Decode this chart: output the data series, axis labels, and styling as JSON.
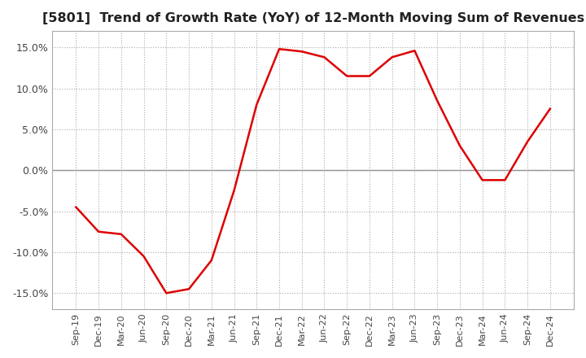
{
  "title": "[5801]  Trend of Growth Rate (YoY) of 12-Month Moving Sum of Revenues",
  "title_fontsize": 11.5,
  "line_color": "#dd0000",
  "background_color": "#ffffff",
  "grid_color": "#aaaaaa",
  "zero_line_color": "#888888",
  "ylim": [
    -17,
    17
  ],
  "yticks": [
    -15,
    -10,
    -5,
    0,
    5,
    10,
    15
  ],
  "ytick_labels": [
    "-15.0%",
    "-10.0%",
    "-5.0%",
    "0.0%",
    "5.0%",
    "10.0%",
    "15.0%"
  ],
  "x_labels": [
    "Sep-19",
    "Dec-19",
    "Mar-20",
    "Jun-20",
    "Sep-20",
    "Dec-20",
    "Mar-21",
    "Jun-21",
    "Sep-21",
    "Dec-21",
    "Mar-22",
    "Jun-22",
    "Sep-22",
    "Dec-22",
    "Mar-23",
    "Jun-23",
    "Sep-23",
    "Dec-23",
    "Mar-24",
    "Jun-24",
    "Sep-24",
    "Dec-24"
  ],
  "y_values": [
    -4.5,
    -7.5,
    -7.8,
    -10.5,
    -15.0,
    -14.5,
    -11.0,
    -2.5,
    8.0,
    14.8,
    14.5,
    13.8,
    11.5,
    11.5,
    13.8,
    14.6,
    8.5,
    3.0,
    -1.2,
    -1.2,
    3.5,
    7.5
  ]
}
